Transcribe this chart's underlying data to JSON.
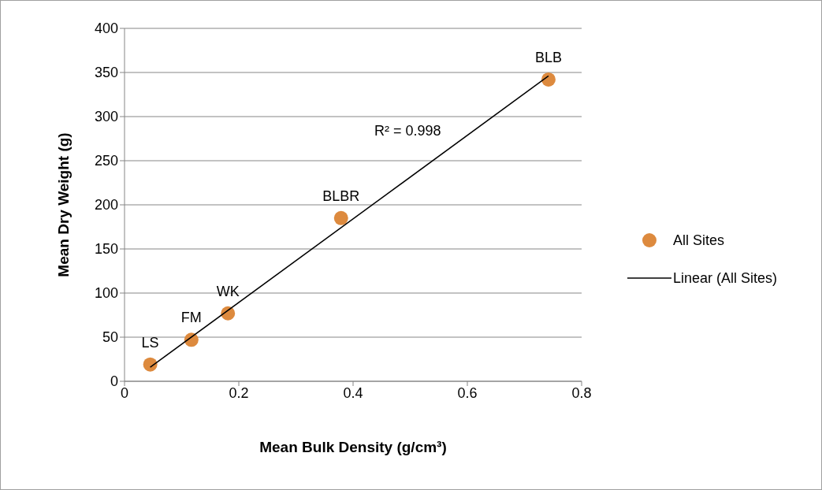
{
  "chart_data": {
    "type": "scatter",
    "xlabel": "Mean Bulk Density (g/cm³)",
    "ylabel": "Mean Dry Weight (g)",
    "xlim": [
      0,
      0.8
    ],
    "xticks": [
      0,
      0.2,
      0.4,
      0.6,
      0.8
    ],
    "ylim": [
      0,
      400
    ],
    "yticks": [
      0,
      50,
      100,
      150,
      200,
      250,
      300,
      350,
      400
    ],
    "grid": "y",
    "legend": "right",
    "series": [
      {
        "name": "All Sites",
        "marker": "circle",
        "color": "#dd8a3e",
        "x": [
          0.045,
          0.117,
          0.181,
          0.379,
          0.742
        ],
        "values": [
          19,
          47,
          77,
          185,
          342
        ]
      },
      {
        "name": "Linear (All Sites)",
        "type": "line",
        "marker": "none",
        "color": "#000000",
        "x": [
          0.045,
          0.742
        ],
        "values": [
          16,
          346
        ]
      }
    ],
    "annotations": [
      {
        "text": "LS",
        "x": 0.045,
        "y": 19
      },
      {
        "text": "FM",
        "x": 0.117,
        "y": 47
      },
      {
        "text": "WK",
        "x": 0.181,
        "y": 77
      },
      {
        "text": "BLBR",
        "x": 0.379,
        "y": 185
      },
      {
        "text": "BLB",
        "x": 0.742,
        "y": 342
      },
      "R² = 0.998"
    ]
  }
}
